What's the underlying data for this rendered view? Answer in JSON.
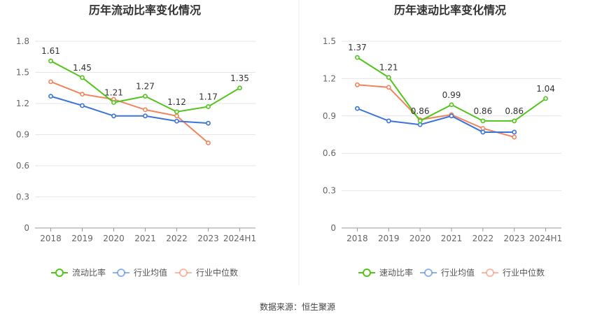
{
  "chart_data": [
    {
      "type": "line",
      "title": "历年流动比率变化情况",
      "categories": [
        "2018",
        "2019",
        "2020",
        "2021",
        "2022",
        "2023",
        "2024H1"
      ],
      "yticks": [
        "0",
        "0.3",
        "0.6",
        "0.9",
        "1.2",
        "1.5",
        "1.8"
      ],
      "ylim": [
        0,
        1.8
      ],
      "series": [
        {
          "name": "流动比率",
          "color": "#52c41a",
          "values": [
            1.61,
            1.45,
            1.21,
            1.27,
            1.12,
            1.17,
            1.35
          ],
          "labels": [
            "1.61",
            "1.45",
            "1.21",
            "1.27",
            "1.12",
            "1.17",
            "1.35"
          ]
        },
        {
          "name": "行业均值",
          "color": "#3b73d9",
          "values": [
            1.27,
            1.18,
            1.08,
            1.08,
            1.03,
            1.01,
            null
          ]
        },
        {
          "name": "行业中位数",
          "color": "#f0845c",
          "values": [
            1.41,
            1.29,
            1.24,
            1.14,
            1.08,
            0.82,
            null
          ]
        }
      ]
    },
    {
      "type": "line",
      "title": "历年速动比率变化情况",
      "categories": [
        "2018",
        "2019",
        "2020",
        "2021",
        "2022",
        "2023",
        "2024H1"
      ],
      "yticks": [
        "0",
        "0.3",
        "0.6",
        "0.9",
        "1.2",
        "1.5"
      ],
      "ylim": [
        0,
        1.5
      ],
      "series": [
        {
          "name": "速动比率",
          "color": "#52c41a",
          "values": [
            1.37,
            1.21,
            0.86,
            0.99,
            0.86,
            0.86,
            1.04
          ],
          "labels": [
            "1.37",
            "1.21",
            "0.86",
            "0.99",
            "0.86",
            "0.86",
            "1.04"
          ]
        },
        {
          "name": "行业均值",
          "color": "#3b73d9",
          "values": [
            0.96,
            0.86,
            0.83,
            0.9,
            0.77,
            0.77,
            null
          ]
        },
        {
          "name": "行业中位数",
          "color": "#f0845c",
          "values": [
            1.15,
            1.13,
            0.87,
            0.91,
            0.8,
            0.73,
            null
          ]
        }
      ]
    }
  ],
  "footer": {
    "source": "数据来源：恒生聚源"
  }
}
